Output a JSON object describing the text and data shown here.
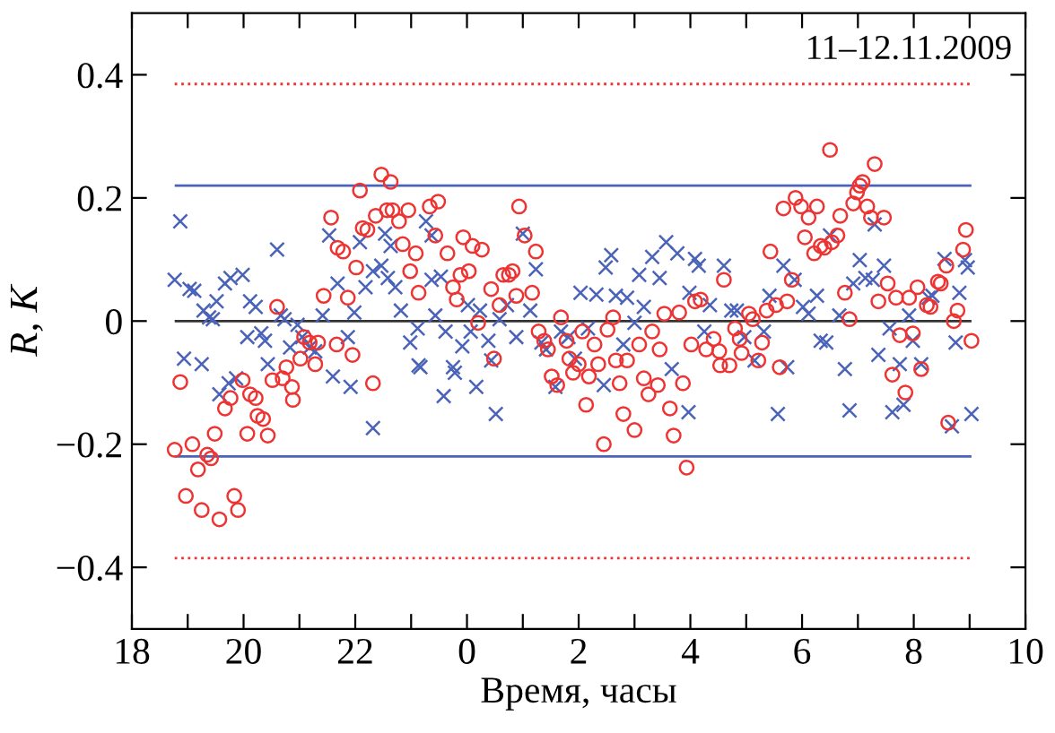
{
  "chart_data": {
    "type": "scatter",
    "xlabel": "Время, часы",
    "ylabel": "R, K",
    "annotations": [
      "11–12.11.2009"
    ],
    "xlim": [
      "2009-11-11T18:00",
      "2009-11-12T10:00"
    ],
    "ylim": [
      -0.5,
      0.5
    ],
    "xticks": [
      {
        "value": "2009-11-11T18:00",
        "label": "18"
      },
      {
        "value": "2009-11-11T19:00",
        "label": null
      },
      {
        "value": "2009-11-11T20:00",
        "label": "20"
      },
      {
        "value": "2009-11-11T21:00",
        "label": null
      },
      {
        "value": "2009-11-11T22:00",
        "label": "22"
      },
      {
        "value": "2009-11-11T23:00",
        "label": null
      },
      {
        "value": "2009-11-12T00:00",
        "label": "0"
      },
      {
        "value": "2009-11-12T01:00",
        "label": null
      },
      {
        "value": "2009-11-12T02:00",
        "label": "2"
      },
      {
        "value": "2009-11-12T03:00",
        "label": null
      },
      {
        "value": "2009-11-12T04:00",
        "label": "4"
      },
      {
        "value": "2009-11-12T05:00",
        "label": null
      },
      {
        "value": "2009-11-12T06:00",
        "label": "6"
      },
      {
        "value": "2009-11-12T07:00",
        "label": null
      },
      {
        "value": "2009-11-12T08:00",
        "label": "8"
      },
      {
        "value": "2009-11-12T09:00",
        "label": null
      },
      {
        "value": "2009-11-12T10:00",
        "label": "10"
      }
    ],
    "yticks": [
      {
        "value": -0.4,
        "label": "−0.4"
      },
      {
        "value": -0.2,
        "label": "−0.2"
      },
      0,
      0.2,
      0.4
    ],
    "grid": false,
    "legend": false,
    "ref_lines": [
      {
        "axis": "y",
        "value": 0,
        "color": "#333333",
        "line_style": "solid"
      },
      {
        "axis": "y",
        "value": 0.22,
        "color": "#4a63b8",
        "line_style": "solid"
      },
      {
        "axis": "y",
        "value": -0.22,
        "color": "#4a63b8",
        "line_style": "solid"
      },
      {
        "axis": "y",
        "value": 0.385,
        "color": "#ee3333",
        "line_style": "dotted"
      },
      {
        "axis": "y",
        "value": -0.385,
        "color": "#ee3333",
        "line_style": "dotted"
      }
    ],
    "series": [
      {
        "color": "#4a63b8",
        "marker": "cross",
        "x": [
          "2009-11-11T18:52",
          "2009-11-11T18:46",
          "2009-11-11T19:02",
          "2009-11-11T19:07",
          "2009-11-11T18:56",
          "2009-11-11T19:15",
          "2009-11-11T19:17",
          "2009-11-11T19:23",
          "2009-11-11T19:27",
          "2009-11-11T19:31",
          "2009-11-11T19:40",
          "2009-11-11T19:46",
          "2009-11-11T19:59",
          "2009-11-11T19:34",
          "2009-11-11T19:44",
          "2009-11-11T19:52",
          "2009-11-11T20:07",
          "2009-11-11T20:13",
          "2009-11-11T20:04",
          "2009-11-11T20:19",
          "2009-11-11T20:23",
          "2009-11-11T20:26",
          "2009-11-11T20:36",
          "2009-11-11T20:40",
          "2009-11-11T20:44",
          "2009-11-11T20:50",
          "2009-11-11T20:58",
          "2009-11-11T21:03",
          "2009-11-11T21:11",
          "2009-11-11T21:17",
          "2009-11-11T21:25",
          "2009-11-11T21:32",
          "2009-11-11T21:36",
          "2009-11-11T21:41",
          "2009-11-11T21:52",
          "2009-11-11T21:55",
          "2009-11-11T21:59",
          "2009-11-11T22:05",
          "2009-11-11T22:19",
          "2009-11-11T22:11",
          "2009-11-11T22:19",
          "2009-11-11T22:28",
          "2009-11-11T22:32",
          "2009-11-11T22:38",
          "2009-11-11T22:35",
          "2009-11-11T22:43",
          "2009-11-11T22:49",
          "2009-11-11T22:59",
          "2009-11-11T23:07",
          "2009-11-11T23:08",
          "2009-11-11T23:16",
          "2009-11-11T23:22",
          "2009-11-11T23:22",
          "2009-11-11T23:32",
          "2009-11-11T23:26",
          "2009-11-11T23:10",
          "2009-11-11T23:35",
          "2009-11-11T23:37",
          "2009-11-11T23:45",
          "2009-11-11T23:47",
          "2009-11-11T23:55",
          "2009-11-12T00:01",
          "2009-11-12T00:04",
          "2009-11-12T00:10",
          "2009-11-12T00:14",
          "2009-11-12T00:23",
          "2009-11-12T00:26",
          "2009-11-12T00:31",
          "2009-11-12T00:35",
          "2009-11-12T00:43",
          "2009-11-12T00:53",
          "2009-11-12T01:00",
          "2009-11-12T01:08",
          "2009-11-12T01:14",
          "2009-11-12T01:20",
          "2009-11-12T01:25",
          "2009-11-12T01:35",
          "2009-11-12T01:41",
          "2009-11-12T01:49",
          "2009-11-12T01:56",
          "2009-11-12T02:02",
          "2009-11-12T02:10",
          "2009-11-12T02:19",
          "2009-11-12T02:27",
          "2009-11-12T02:29",
          "2009-11-12T02:35",
          "2009-11-12T02:40",
          "2009-11-12T02:48",
          "2009-11-12T02:52",
          "2009-11-12T03:00",
          "2009-11-12T03:05",
          "2009-11-12T03:10",
          "2009-11-12T03:19",
          "2009-11-12T03:27",
          "2009-11-12T03:34",
          "2009-11-12T03:40",
          "2009-11-12T03:46",
          "2009-11-12T03:58",
          "2009-11-12T03:59",
          "2009-11-12T04:05",
          "2009-11-12T04:09",
          "2009-11-12T04:15",
          "2009-11-12T04:21",
          "2009-11-12T04:36",
          "2009-11-12T04:44",
          "2009-11-12T04:50",
          "2009-11-12T04:58",
          "2009-11-12T05:09",
          "2009-11-12T05:19",
          "2009-11-12T05:25",
          "2009-11-12T05:34",
          "2009-11-12T05:40",
          "2009-11-12T05:44",
          "2009-11-12T05:52",
          "2009-11-12T06:01",
          "2009-11-12T06:07",
          "2009-11-12T06:16",
          "2009-11-12T06:20",
          "2009-11-12T06:26",
          "2009-11-12T06:30",
          "2009-11-12T06:40",
          "2009-11-12T06:46",
          "2009-11-12T06:51",
          "2009-11-12T06:55",
          "2009-11-12T07:02",
          "2009-11-12T07:08",
          "2009-11-12T07:16",
          "2009-11-12T07:18",
          "2009-11-12T07:22",
          "2009-11-12T07:28",
          "2009-11-12T07:34",
          "2009-11-12T07:37",
          "2009-11-12T07:45",
          "2009-11-12T07:49",
          "2009-11-12T07:55",
          "2009-11-12T07:59",
          "2009-11-12T08:08",
          "2009-11-12T08:16",
          "2009-11-12T08:20",
          "2009-11-12T08:33",
          "2009-11-12T08:41",
          "2009-11-12T08:45",
          "2009-11-12T08:49",
          "2009-11-12T08:55",
          "2009-11-12T08:58",
          "2009-11-12T09:02"
        ],
        "values": [
          0.162,
          0.067,
          0.052,
          0.049,
          -0.061,
          -0.07,
          0.017,
          0.006,
          0.003,
          0.032,
          0.061,
          0.07,
          0.075,
          -0.119,
          -0.101,
          -0.093,
          0.032,
          0.023,
          -0.026,
          -0.02,
          -0.032,
          -0.07,
          0.116,
          0.009,
          0.003,
          -0.043,
          -0.006,
          -0.026,
          -0.043,
          -0.049,
          0.009,
          0.139,
          -0.09,
          0.061,
          -0.026,
          -0.107,
          0.014,
          0.128,
          -0.174,
          0.055,
          0.081,
          0.09,
          0.142,
          0.122,
          0.07,
          0.055,
          0.017,
          -0.035,
          -0.012,
          -0.072,
          0.162,
          0.139,
          0.067,
          0.072,
          0.009,
          -0.075,
          -0.122,
          -0.017,
          -0.075,
          -0.084,
          -0.041,
          0.026,
          -0.017,
          -0.107,
          0.017,
          -0.032,
          -0.064,
          -0.151,
          0.003,
          0.026,
          -0.026,
          0.142,
          0.017,
          0.084,
          -0.035,
          -0.046,
          -0.107,
          -0.017,
          -0.026,
          -0.061,
          0.046,
          -0.012,
          0.043,
          -0.104,
          0.087,
          0.107,
          0.041,
          -0.038,
          0.038,
          -0.003,
          0.075,
          0.023,
          0.104,
          0.07,
          0.128,
          -0.078,
          0.11,
          -0.148,
          0.046,
          0.101,
          0.09,
          -0.017,
          0.026,
          0.09,
          0.017,
          0.017,
          -0.026,
          -0.064,
          -0.017,
          0.041,
          -0.151,
          0.09,
          -0.075,
          0.067,
          0.023,
          0.012,
          0.041,
          -0.032,
          -0.035,
          0.139,
          0.009,
          -0.078,
          -0.145,
          0.061,
          0.099,
          0.07,
          0.067,
          0.157,
          -0.055,
          0.09,
          -0.012,
          -0.148,
          -0.07,
          -0.136,
          0.009,
          -0.032,
          -0.07,
          0.038,
          0.041,
          0.101,
          -0.171,
          -0.035,
          0.046,
          0.099,
          0.087,
          -0.151
        ]
      },
      {
        "color": "#ee3333",
        "marker": "circle",
        "x": [
          "2009-11-11T18:52",
          "2009-11-11T18:46",
          "2009-11-11T19:05",
          "2009-11-11T18:58",
          "2009-11-11T19:15",
          "2009-11-11T19:11",
          "2009-11-11T19:21",
          "2009-11-11T19:25",
          "2009-11-11T19:29",
          "2009-11-11T19:34",
          "2009-11-11T19:50",
          "2009-11-11T19:54",
          "2009-11-11T19:40",
          "2009-11-11T19:46",
          "2009-11-11T19:59",
          "2009-11-11T20:04",
          "2009-11-11T20:07",
          "2009-11-11T20:13",
          "2009-11-11T20:15",
          "2009-11-11T20:21",
          "2009-11-11T20:26",
          "2009-11-11T20:31",
          "2009-11-11T20:36",
          "2009-11-11T20:42",
          "2009-11-11T20:46",
          "2009-11-11T20:52",
          "2009-11-11T20:53",
          "2009-11-11T21:01",
          "2009-11-11T21:05",
          "2009-11-11T21:11",
          "2009-11-11T21:17",
          "2009-11-11T21:20",
          "2009-11-11T21:26",
          "2009-11-11T21:34",
          "2009-11-11T21:40",
          "2009-11-11T21:41",
          "2009-11-11T21:47",
          "2009-11-11T21:52",
          "2009-11-11T21:57",
          "2009-11-11T22:01",
          "2009-11-11T22:05",
          "2009-11-11T22:08",
          "2009-11-11T22:13",
          "2009-11-11T22:19",
          "2009-11-11T22:22",
          "2009-11-11T22:28",
          "2009-11-11T22:38",
          "2009-11-11T22:34",
          "2009-11-11T22:40",
          "2009-11-11T22:47",
          "2009-11-11T22:51",
          "2009-11-11T22:57",
          "2009-11-11T22:59",
          "2009-11-11T23:05",
          "2009-11-11T23:08",
          "2009-11-11T23:20",
          "2009-11-11T23:29",
          "2009-11-11T23:26",
          "2009-11-11T23:39",
          "2009-11-11T23:45",
          "2009-11-11T23:49",
          "2009-11-11T23:53",
          "2009-11-11T23:56",
          "2009-11-12T00:02",
          "2009-11-12T00:06",
          "2009-11-12T00:16",
          "2009-11-12T00:12",
          "2009-11-12T00:26",
          "2009-11-12T00:29",
          "2009-11-12T00:35",
          "2009-11-12T00:39",
          "2009-11-12T00:45",
          "2009-11-12T00:49",
          "2009-11-12T00:53",
          "2009-11-12T00:56",
          "2009-11-12T01:02",
          "2009-11-12T01:10",
          "2009-11-12T01:14",
          "2009-11-12T01:17",
          "2009-11-12T01:23",
          "2009-11-12T01:27",
          "2009-11-12T01:31",
          "2009-11-12T01:37",
          "2009-11-12T01:41",
          "2009-11-12T01:47",
          "2009-11-12T01:50",
          "2009-11-12T01:54",
          "2009-11-12T02:00",
          "2009-11-12T02:04",
          "2009-11-12T02:08",
          "2009-11-12T02:11",
          "2009-11-12T02:17",
          "2009-11-12T02:21",
          "2009-11-12T02:27",
          "2009-11-12T02:31",
          "2009-11-12T02:37",
          "2009-11-12T02:40",
          "2009-11-12T02:44",
          "2009-11-12T02:48",
          "2009-11-12T02:52",
          "2009-11-12T03:00",
          "2009-11-12T03:05",
          "2009-11-12T03:10",
          "2009-11-12T03:15",
          "2009-11-12T03:19",
          "2009-11-12T03:25",
          "2009-11-12T03:27",
          "2009-11-12T03:32",
          "2009-11-12T03:38",
          "2009-11-12T03:42",
          "2009-11-12T03:48",
          "2009-11-12T03:52",
          "2009-11-12T03:56",
          "2009-11-12T04:01",
          "2009-11-12T04:05",
          "2009-11-12T04:11",
          "2009-11-12T04:17",
          "2009-11-12T04:25",
          "2009-11-12T04:32",
          "2009-11-12T04:36",
          "2009-11-12T04:42",
          "2009-11-12T04:31",
          "2009-11-12T04:48",
          "2009-11-12T04:53",
          "2009-11-12T04:55",
          "2009-11-12T05:03",
          "2009-11-12T05:07",
          "2009-11-12T05:13",
          "2009-11-12T05:17",
          "2009-11-12T05:22",
          "2009-11-12T05:26",
          "2009-11-12T05:32",
          "2009-11-12T05:36",
          "2009-11-12T05:40",
          "2009-11-12T05:44",
          "2009-11-12T05:49",
          "2009-11-12T05:53",
          "2009-11-12T05:59",
          "2009-11-12T06:03",
          "2009-11-12T06:07",
          "2009-11-12T06:13",
          "2009-11-12T06:16",
          "2009-11-12T06:20",
          "2009-11-12T06:24",
          "2009-11-12T06:30",
          "2009-11-12T06:32",
          "2009-11-12T06:38",
          "2009-11-12T06:41",
          "2009-11-12T06:46",
          "2009-11-12T06:51",
          "2009-11-12T06:55",
          "2009-11-12T06:59",
          "2009-11-12T07:02",
          "2009-11-12T07:05",
          "2009-11-12T07:10",
          "2009-11-12T07:14",
          "2009-11-12T07:18",
          "2009-11-12T07:22",
          "2009-11-12T07:28",
          "2009-11-12T07:32",
          "2009-11-12T07:37",
          "2009-11-12T07:41",
          "2009-11-12T07:45",
          "2009-11-12T07:51",
          "2009-11-12T07:55",
          "2009-11-12T07:59",
          "2009-11-12T08:04",
          "2009-11-12T08:08",
          "2009-11-12T08:14",
          "2009-11-12T08:18",
          "2009-11-12T08:26",
          "2009-11-12T08:29",
          "2009-11-12T08:35",
          "2009-11-12T08:37",
          "2009-11-12T08:43",
          "2009-11-12T08:47",
          "2009-11-12T08:53",
          "2009-11-12T08:56",
          "2009-11-12T09:02"
        ],
        "values": [
          -0.099,
          -0.209,
          -0.2,
          -0.284,
          -0.307,
          -0.241,
          -0.217,
          -0.223,
          -0.183,
          -0.322,
          -0.284,
          -0.307,
          -0.142,
          -0.125,
          -0.096,
          -0.183,
          -0.119,
          -0.125,
          -0.154,
          -0.159,
          -0.186,
          -0.096,
          0.023,
          -0.093,
          -0.075,
          -0.107,
          -0.128,
          -0.061,
          -0.026,
          -0.035,
          -0.07,
          -0.035,
          0.041,
          0.168,
          -0.038,
          0.119,
          0.113,
          0.038,
          -0.055,
          0.087,
          0.212,
          0.151,
          0.148,
          -0.101,
          0.171,
          0.238,
          0.226,
          0.18,
          0.18,
          0.162,
          0.125,
          0.18,
          0.081,
          0.11,
          0.046,
          0.186,
          0.194,
          0.139,
          0.11,
          0.055,
          0.035,
          0.075,
          0.136,
          0.081,
          0.122,
          0.116,
          -0.003,
          0.052,
          -0.061,
          0.026,
          0.075,
          0.075,
          0.081,
          0.041,
          0.186,
          0.139,
          0.046,
          0.113,
          -0.017,
          -0.032,
          -0.046,
          -0.09,
          -0.104,
          0.006,
          -0.032,
          -0.061,
          -0.084,
          -0.07,
          -0.017,
          -0.136,
          -0.09,
          -0.038,
          -0.07,
          -0.2,
          -0.014,
          0.006,
          -0.064,
          -0.101,
          -0.151,
          -0.064,
          -0.177,
          -0.038,
          -0.093,
          -0.119,
          -0.017,
          -0.104,
          -0.046,
          0.012,
          -0.142,
          -0.186,
          0.014,
          -0.101,
          -0.238,
          -0.038,
          0.032,
          0.035,
          -0.046,
          -0.029,
          -0.072,
          0.067,
          -0.072,
          -0.049,
          -0.012,
          -0.029,
          -0.052,
          0.012,
          0.003,
          -0.064,
          -0.035,
          0.017,
          0.113,
          0.026,
          -0.075,
          0.183,
          0.032,
          0.067,
          0.2,
          0.186,
          0.136,
          0.168,
          0.11,
          0.186,
          0.122,
          0.119,
          0.278,
          0.128,
          0.139,
          0.171,
          0.046,
          0.003,
          0.191,
          0.209,
          0.22,
          0.226,
          0.186,
          0.168,
          0.255,
          0.032,
          0.168,
          0.061,
          -0.087,
          0.038,
          -0.023,
          -0.116,
          0.038,
          -0.02,
          0.055,
          -0.078,
          0.026,
          0.023,
          0.064,
          0.061,
          0.09,
          -0.165,
          0.0,
          0.017,
          0.116,
          0.148,
          -0.032
        ]
      }
    ]
  }
}
